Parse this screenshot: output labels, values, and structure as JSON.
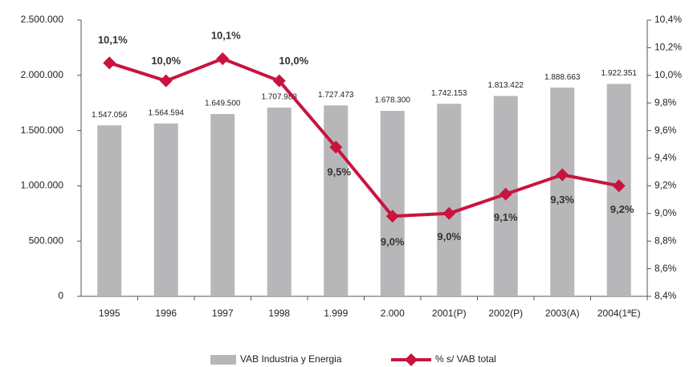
{
  "chart_data": {
    "type": "bar_line",
    "categories": [
      "1995",
      "1996",
      "1997",
      "1998",
      "1.999",
      "2.000",
      "2001(P)",
      "2002(P)",
      "2003(A)",
      "2004(1ªE)"
    ],
    "series": [
      {
        "name": "VAB Industria y Energia",
        "color": "#b7b7b9",
        "type": "bar",
        "values": [
          1547056,
          1564594,
          1649500,
          1707988,
          1727473,
          1678300,
          1742153,
          1813422,
          1888663,
          1922351
        ],
        "value_labels": [
          "1.547.056",
          "1.564.594",
          "1.649.500",
          "1.707.988",
          "1.727.473",
          "1.678.300",
          "1.742.153",
          "1.813.422",
          "1.888.663",
          "1.922.351"
        ]
      },
      {
        "name": "% s/ VAB total",
        "color": "#c8143f",
        "type": "line",
        "axis": "y2",
        "values": [
          10.09,
          9.96,
          10.12,
          9.96,
          9.48,
          8.98,
          9.0,
          9.14,
          9.28,
          9.2
        ],
        "value_labels": [
          "10,1%",
          "10,0%",
          "10,1%",
          "10,0%",
          "9,5%",
          "9,0%",
          "9,0%",
          "9,1%",
          "9,3%",
          "9,2%"
        ]
      }
    ],
    "ylim": [
      0,
      2500000
    ],
    "yticks": [
      0,
      {
        "value": 500000,
        "label": "500.000"
      },
      {
        "value": 1000000,
        "label": "1.000.000"
      },
      {
        "value": 1500000,
        "label": "1.500.000"
      },
      {
        "value": 2000000,
        "label": "2.000.000"
      },
      {
        "value": 2500000,
        "label": "2.500.000"
      }
    ],
    "y2lim": [
      8.4,
      10.4
    ],
    "y2ticks": [
      {
        "value": 8.4,
        "label": "8,4%"
      },
      {
        "value": 8.6,
        "label": "8,6%"
      },
      {
        "value": 8.8,
        "label": "8,8%"
      },
      {
        "value": 9.0,
        "label": "9,0%"
      },
      {
        "value": 9.2,
        "label": "9,2%"
      },
      {
        "value": 9.4,
        "label": "9,4%"
      },
      {
        "value": 9.6,
        "label": "9,6%"
      },
      {
        "value": 9.8,
        "label": "9,8%"
      },
      {
        "value": 10.0,
        "label": "10,0%"
      },
      {
        "value": 10.2,
        "label": "10,2%"
      },
      {
        "value": 10.4,
        "label": "10,4%"
      }
    ],
    "grid": false,
    "legend": "bottom"
  }
}
